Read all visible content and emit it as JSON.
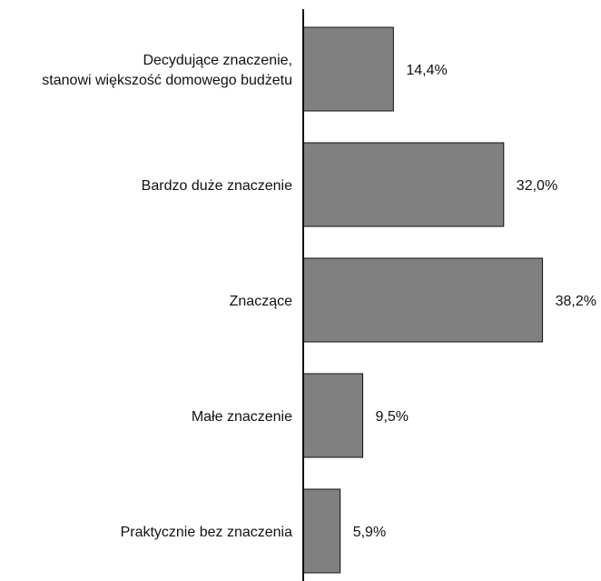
{
  "chart_data": {
    "type": "bar",
    "orientation": "horizontal",
    "categories": [
      [
        "Decydujące znaczenie,",
        "stanowi większość domowego budżetu"
      ],
      [
        "Bardzo duże znaczenie"
      ],
      [
        "Znaczące"
      ],
      [
        "Małe znaczenie"
      ],
      [
        "Praktycznie bez znaczenia"
      ]
    ],
    "values": [
      14.4,
      32.0,
      38.2,
      9.5,
      5.9
    ],
    "value_labels": [
      "14,4%",
      "32,0%",
      "38,2%",
      "9,5%",
      "5,9%"
    ],
    "xlim": [
      0,
      40
    ],
    "grid": false,
    "legend": "none",
    "colors": {
      "bar_fill": "#808083",
      "bar_stroke": "#111111",
      "axis": "#111111",
      "text": "#111111"
    }
  }
}
